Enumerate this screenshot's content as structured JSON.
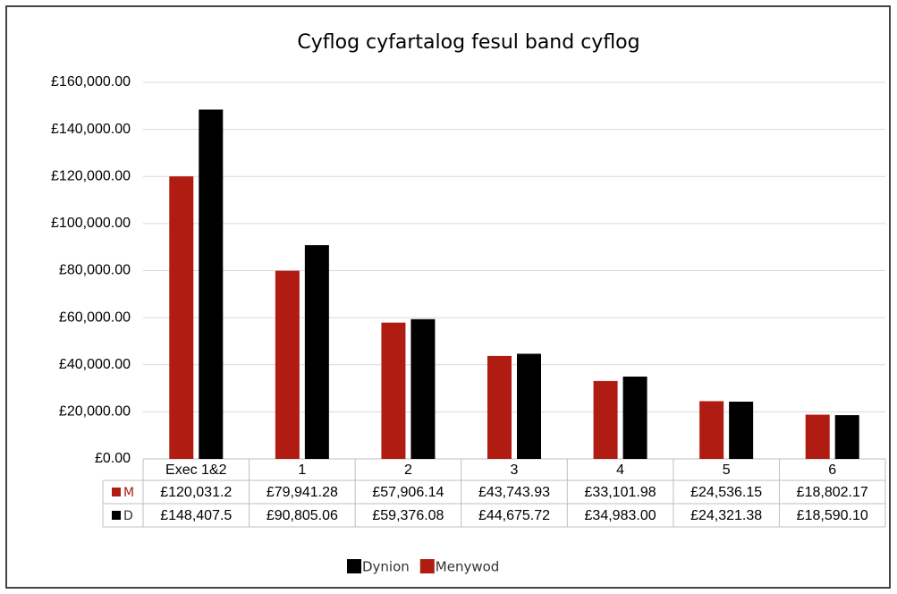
{
  "chart_data": {
    "type": "bar",
    "title": "Cyflog cyfartalog fesul band cyflog",
    "categories": [
      "Exec 1&2",
      "1",
      "2",
      "3",
      "4",
      "5",
      "6"
    ],
    "series": [
      {
        "name": "Menywod",
        "table_label": "M",
        "color": "#b01c12",
        "values": [
          120031.2,
          79941.28,
          57906.14,
          43743.93,
          33101.98,
          24536.15,
          18802.17
        ],
        "value_labels": [
          "£120,031.2",
          "£79,941.28",
          "£57,906.14",
          "£43,743.93",
          "£33,101.98",
          "£24,536.15",
          "£18,802.17"
        ]
      },
      {
        "name": "Dynion",
        "table_label": "D",
        "color": "#000000",
        "values": [
          148407.5,
          90805.06,
          59376.08,
          44675.72,
          34983.0,
          24321.38,
          18590.1
        ],
        "value_labels": [
          "£148,407.5",
          "£90,805.06",
          "£59,376.08",
          "£44,675.72",
          "£34,983.00",
          "£24,321.38",
          "£18,590.10"
        ]
      }
    ],
    "ylim": [
      0,
      160000
    ],
    "yticks": [
      {
        "value": 0,
        "label": "£0.00"
      },
      {
        "value": 20000,
        "label": "£20,000.00"
      },
      {
        "value": 40000,
        "label": "£40,000.00"
      },
      {
        "value": 60000,
        "label": "£60,000.00"
      },
      {
        "value": 80000,
        "label": "£80,000.00"
      },
      {
        "value": 100000,
        "label": "£100,000.00"
      },
      {
        "value": 120000,
        "label": "£120,000.00"
      },
      {
        "value": 140000,
        "label": "£140,000.00"
      },
      {
        "value": 160000,
        "label": "£160,000.00"
      }
    ],
    "grid": true
  }
}
